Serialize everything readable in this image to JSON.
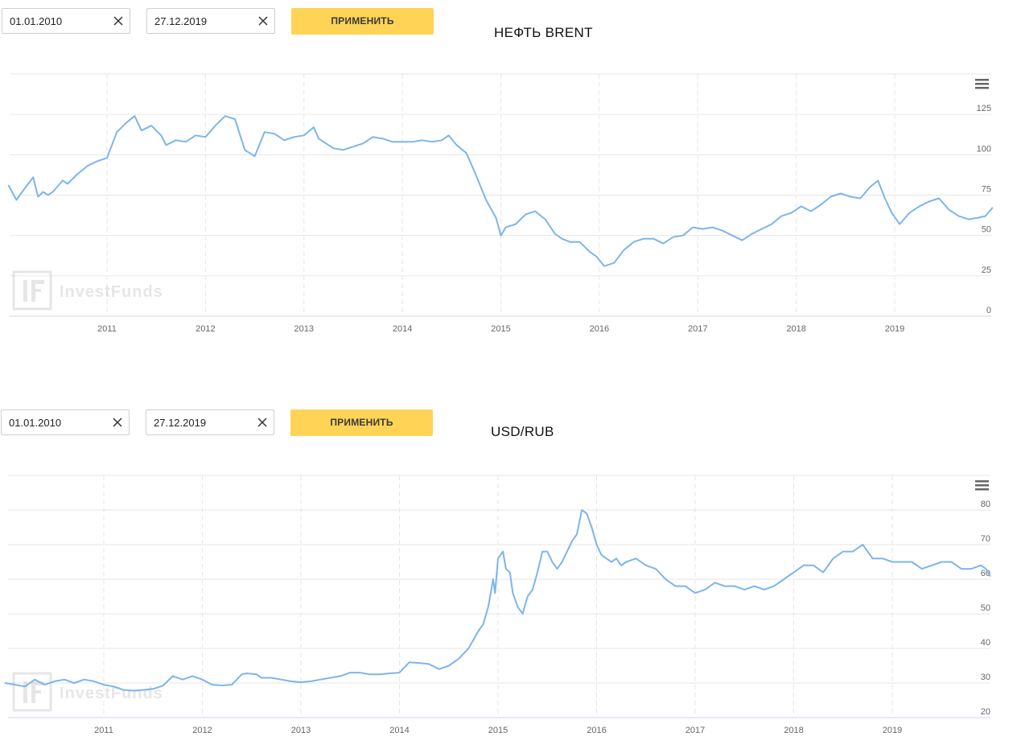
{
  "accent_color": "#ffd355",
  "line_color": "#7cb5ec",
  "panels": [
    {
      "date_from": "01.01.2010",
      "date_to": "27.12.2019",
      "apply_label": "ПРИМЕНИТЬ",
      "watermark": "InvestFunds",
      "icons": {
        "clear": "close-icon",
        "menu": "hamburger-menu-icon",
        "logo": "investfunds-logo"
      }
    },
    {
      "date_from": "01.01.2010",
      "date_to": "27.12.2019",
      "apply_label": "ПРИМЕНИТЬ",
      "watermark": "InvestFunds",
      "icons": {
        "clear": "close-icon",
        "menu": "hamburger-menu-icon",
        "logo": "investfunds-logo"
      }
    }
  ],
  "chart_data": [
    {
      "type": "line",
      "title": "НЕФТЬ BRENT",
      "xlabel": "",
      "ylabel": "",
      "x_ticks": [
        "2011",
        "2012",
        "2013",
        "2014",
        "2015",
        "2016",
        "2017",
        "2018",
        "2019"
      ],
      "y_ticks": [
        0,
        25,
        50,
        75,
        100,
        125
      ],
      "ylim": [
        0,
        150
      ],
      "xlim": [
        2010.0,
        2019.99
      ],
      "grid": true,
      "series": [
        {
          "x": [
            2010.0,
            2010.08,
            2010.15,
            2010.25,
            2010.3,
            2010.35,
            2010.4,
            2010.45,
            2010.55,
            2010.6,
            2010.7,
            2010.8,
            2010.9,
            2011.0,
            2011.1,
            2011.2,
            2011.28,
            2011.35,
            2011.45,
            2011.55,
            2011.6,
            2011.7,
            2011.8,
            2011.9,
            2012.0,
            2012.1,
            2012.2,
            2012.3,
            2012.4,
            2012.5,
            2012.6,
            2012.7,
            2012.8,
            2012.9,
            2013.0,
            2013.1,
            2013.15,
            2013.25,
            2013.3,
            2013.4,
            2013.5,
            2013.6,
            2013.7,
            2013.8,
            2013.9,
            2014.0,
            2014.1,
            2014.2,
            2014.3,
            2014.4,
            2014.47,
            2014.55,
            2014.65,
            2014.75,
            2014.85,
            2014.95,
            2015.0,
            2015.05,
            2015.15,
            2015.25,
            2015.35,
            2015.45,
            2015.55,
            2015.62,
            2015.7,
            2015.8,
            2015.9,
            2015.97,
            2016.05,
            2016.15,
            2016.25,
            2016.35,
            2016.45,
            2016.55,
            2016.65,
            2016.75,
            2016.85,
            2016.95,
            2017.05,
            2017.15,
            2017.25,
            2017.35,
            2017.45,
            2017.55,
            2017.65,
            2017.75,
            2017.85,
            2017.95,
            2018.05,
            2018.15,
            2018.25,
            2018.35,
            2018.45,
            2018.55,
            2018.65,
            2018.75,
            2018.83,
            2018.9,
            2018.97,
            2019.05,
            2019.15,
            2019.25,
            2019.35,
            2019.45,
            2019.55,
            2019.65,
            2019.75,
            2019.85,
            2019.92,
            2019.99
          ],
          "y": [
            81,
            72,
            78,
            86,
            74,
            77,
            75,
            77,
            84,
            82,
            88,
            93,
            96,
            98,
            114,
            120,
            124,
            115,
            118,
            112,
            106,
            109,
            108,
            112,
            111,
            118,
            124,
            122,
            103,
            99,
            114,
            113,
            109,
            111,
            112,
            117,
            110,
            106,
            104,
            103,
            105,
            107,
            111,
            110,
            108,
            108,
            108,
            109,
            108,
            109,
            112,
            106,
            101,
            87,
            72,
            61,
            50,
            55,
            57,
            63,
            65,
            60,
            51,
            48,
            46,
            46,
            40,
            37,
            31,
            33,
            41,
            46,
            48,
            48,
            45,
            49,
            50,
            55,
            54,
            55,
            53,
            50,
            47,
            51,
            54,
            57,
            62,
            64,
            68,
            65,
            69,
            74,
            76,
            74,
            73,
            80,
            84,
            73,
            64,
            57,
            64,
            68,
            71,
            73,
            66,
            62,
            60,
            61,
            62,
            67
          ]
        }
      ]
    },
    {
      "type": "line",
      "title": "USD/RUB",
      "xlabel": "",
      "ylabel": "",
      "x_ticks": [
        "2011",
        "2012",
        "2013",
        "2014",
        "2015",
        "2016",
        "2017",
        "2018",
        "2019"
      ],
      "y_ticks": [
        20,
        30,
        40,
        50,
        60,
        70,
        80
      ],
      "ylim": [
        20,
        90
      ],
      "xlim": [
        2010.0,
        2019.99
      ],
      "grid": true,
      "series": [
        {
          "x": [
            2010.0,
            2010.1,
            2010.2,
            2010.3,
            2010.4,
            2010.5,
            2010.6,
            2010.7,
            2010.8,
            2010.9,
            2011.0,
            2011.1,
            2011.2,
            2011.3,
            2011.4,
            2011.5,
            2011.6,
            2011.7,
            2011.8,
            2011.9,
            2012.0,
            2012.1,
            2012.2,
            2012.3,
            2012.4,
            2012.45,
            2012.55,
            2012.6,
            2012.7,
            2012.8,
            2012.9,
            2013.0,
            2013.1,
            2013.2,
            2013.3,
            2013.4,
            2013.5,
            2013.6,
            2013.7,
            2013.8,
            2013.9,
            2014.0,
            2014.1,
            2014.2,
            2014.3,
            2014.4,
            2014.5,
            2014.6,
            2014.7,
            2014.8,
            2014.85,
            2014.9,
            2014.95,
            2014.97,
            2015.0,
            2015.05,
            2015.08,
            2015.12,
            2015.15,
            2015.2,
            2015.25,
            2015.3,
            2015.35,
            2015.4,
            2015.45,
            2015.5,
            2015.55,
            2015.6,
            2015.65,
            2015.7,
            2015.75,
            2015.8,
            2015.85,
            2015.9,
            2015.95,
            2016.0,
            2016.05,
            2016.1,
            2016.15,
            2016.2,
            2016.25,
            2016.3,
            2016.4,
            2016.5,
            2016.6,
            2016.7,
            2016.8,
            2016.9,
            2017.0,
            2017.1,
            2017.2,
            2017.3,
            2017.4,
            2017.5,
            2017.6,
            2017.7,
            2017.8,
            2017.9,
            2018.0,
            2018.1,
            2018.2,
            2018.3,
            2018.4,
            2018.5,
            2018.6,
            2018.7,
            2018.8,
            2018.9,
            2019.0,
            2019.1,
            2019.2,
            2019.3,
            2019.4,
            2019.5,
            2019.6,
            2019.7,
            2019.8,
            2019.9,
            2019.95,
            2019.99
          ],
          "y": [
            30,
            29.5,
            29,
            31,
            29.5,
            30.5,
            31,
            30,
            31,
            30.5,
            29.5,
            29,
            28,
            27.8,
            28,
            28.3,
            29.2,
            32,
            31,
            32,
            31,
            29.5,
            29.3,
            29.5,
            32.5,
            32.8,
            32.5,
            31.5,
            31.5,
            31,
            30.5,
            30.2,
            30.5,
            31,
            31.5,
            32,
            33,
            33,
            32.5,
            32.5,
            32.8,
            33,
            36,
            35.8,
            35.5,
            34,
            35,
            37,
            40,
            45,
            47,
            52,
            60,
            56,
            66,
            68,
            63,
            62,
            56,
            52,
            50,
            55,
            57,
            62,
            68,
            68,
            65,
            63,
            65,
            68,
            71,
            73,
            80,
            79,
            75,
            70,
            67,
            66,
            65,
            66,
            64,
            65,
            66,
            64,
            63,
            60,
            58,
            58,
            56,
            57,
            59,
            58,
            58,
            57,
            58,
            57,
            58,
            60,
            62,
            64,
            64,
            62,
            66,
            68,
            68,
            70,
            66,
            66,
            65,
            65,
            65,
            63,
            64,
            65,
            65,
            63,
            63,
            64,
            63,
            61
          ]
        }
      ]
    }
  ]
}
